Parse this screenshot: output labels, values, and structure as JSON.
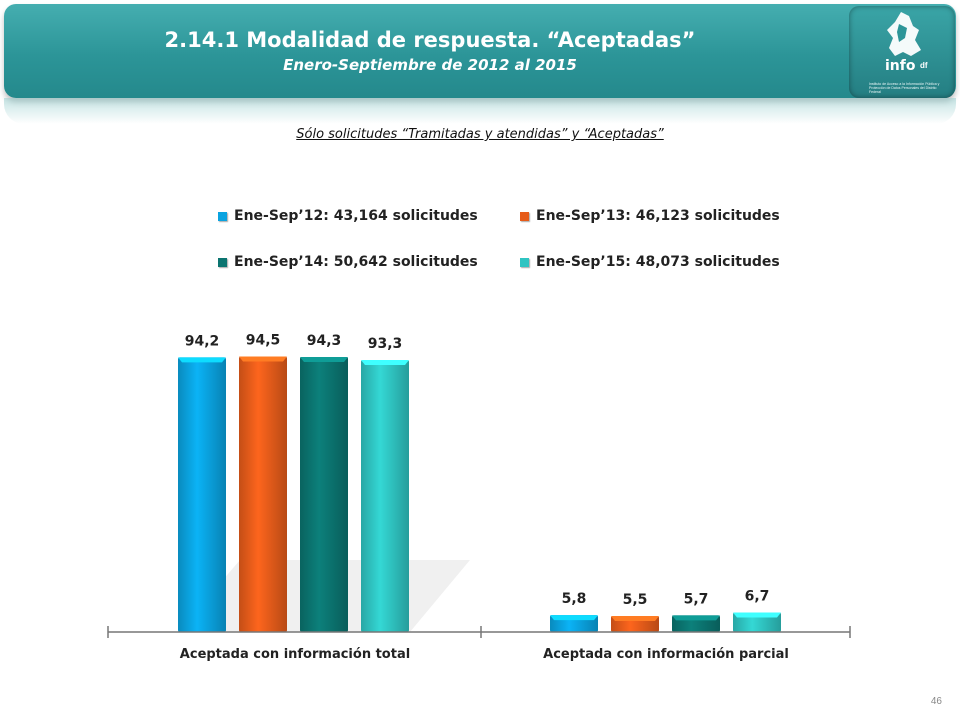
{
  "header": {
    "title": "2.14.1 Modalidad de respuesta. “Aceptadas”",
    "subtitle": "Enero-Septiembre de 2012 al 2015"
  },
  "logo": {
    "word": "info",
    "superscript": "df",
    "caption": "Instituto de Acceso a la Información Pública y Protección de Datos Personales del Distrito Federal"
  },
  "note": "Sólo solicitudes “Tramitadas y atendidas” y “Aceptadas”",
  "page_number": "46",
  "colors": {
    "header": "#2c9598",
    "series": [
      "#0aa3e0",
      "#e65c1a",
      "#0b7470",
      "#2fc4c2"
    ]
  },
  "chart_data": {
    "type": "bar",
    "categories": [
      "Aceptada con información total",
      "Aceptada con información parcial"
    ],
    "series": [
      {
        "name": "Ene-Sep’12:  43,164 solicitudes",
        "values": [
          94.2,
          5.8
        ],
        "labels": [
          "94,2",
          "5,8"
        ]
      },
      {
        "name": "Ene-Sep’13:  46,123 solicitudes",
        "values": [
          94.5,
          5.5
        ],
        "labels": [
          "94,5",
          "5,5"
        ]
      },
      {
        "name": "Ene-Sep’14:  50,642 solicitudes",
        "values": [
          94.3,
          5.7
        ],
        "labels": [
          "94,3",
          "5,7"
        ]
      },
      {
        "name": "Ene-Sep’15:  48,073 solicitudes",
        "values": [
          93.3,
          6.7
        ],
        "labels": [
          "93,3",
          "6,7"
        ]
      }
    ],
    "ylim": [
      0,
      100
    ],
    "grid": false,
    "legend_position": "top"
  }
}
